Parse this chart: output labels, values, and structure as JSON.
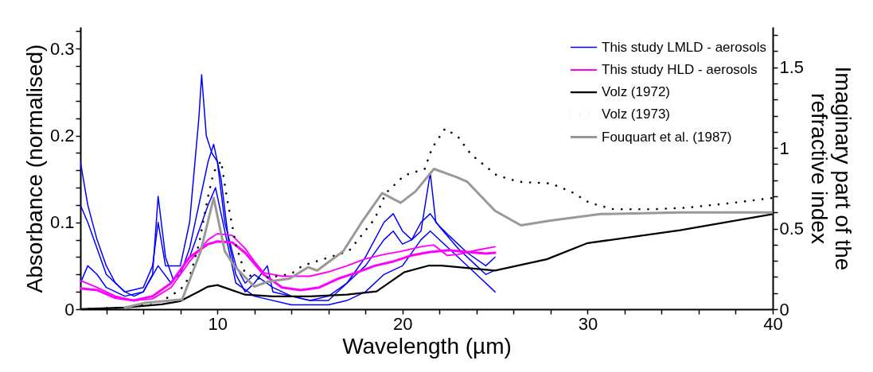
{
  "chart_data": {
    "type": "line",
    "xlabel": "Wavelength (µm)",
    "ylabel": "Absorbance (normalised)",
    "y2label": "Imaginary part of the refractive index",
    "legend": "top right",
    "grid": false,
    "xlim": [
      2.6,
      40
    ],
    "ylim": [
      0,
      0.325
    ],
    "y2lim": [
      0,
      1.75
    ],
    "xticks": [
      {
        "value": 4,
        "label": null
      },
      {
        "value": 6,
        "label": null
      },
      {
        "value": 8,
        "label": null
      },
      10,
      {
        "value": 12,
        "label": null
      },
      {
        "value": 14,
        "label": null
      },
      {
        "value": 16,
        "label": null
      },
      {
        "value": 18,
        "label": null
      },
      20,
      {
        "value": 22,
        "label": null
      },
      {
        "value": 24,
        "label": null
      },
      {
        "value": 26,
        "label": null
      },
      {
        "value": 28,
        "label": null
      },
      30,
      {
        "value": 32,
        "label": null
      },
      {
        "value": 34,
        "label": null
      },
      {
        "value": 36,
        "label": null
      },
      {
        "value": 38,
        "label": null
      },
      40
    ],
    "yticks": [
      0,
      {
        "value": 0.02,
        "label": null
      },
      {
        "value": 0.04,
        "label": null
      },
      {
        "value": 0.06,
        "label": null
      },
      {
        "value": 0.08,
        "label": null
      },
      0.1,
      {
        "value": 0.12,
        "label": null
      },
      {
        "value": 0.14,
        "label": null
      },
      {
        "value": 0.16,
        "label": null
      },
      {
        "value": 0.18,
        "label": null
      },
      0.2,
      {
        "value": 0.22,
        "label": null
      },
      {
        "value": 0.24,
        "label": null
      },
      {
        "value": 0.26,
        "label": null
      },
      {
        "value": 0.28,
        "label": null
      },
      0.3,
      {
        "value": 0.32,
        "label": null
      }
    ],
    "y2ticks": [
      0,
      {
        "value": 0.1,
        "label": null
      },
      {
        "value": 0.2,
        "label": null
      },
      {
        "value": 0.3,
        "label": null
      },
      {
        "value": 0.4,
        "label": null
      },
      0.5,
      {
        "value": 0.6,
        "label": null
      },
      {
        "value": 0.7,
        "label": null
      },
      {
        "value": 0.8,
        "label": null
      },
      {
        "value": 0.9,
        "label": null
      },
      1,
      {
        "value": 1.1,
        "label": null
      },
      {
        "value": 1.2,
        "label": null
      },
      {
        "value": 1.3,
        "label": null
      },
      {
        "value": 1.4,
        "label": null
      },
      1.5,
      {
        "value": 1.6,
        "label": null
      },
      {
        "value": 1.7,
        "label": null
      }
    ],
    "series": [
      {
        "color": "#0000ff",
        "x": [
          2.6,
          3,
          3.5,
          4,
          5,
          6,
          6.5,
          6.8,
          7.2,
          8,
          8.5,
          9,
          9.15,
          9.4,
          9.7,
          10,
          10.4,
          11,
          11.5,
          12,
          13,
          14,
          15,
          16,
          17,
          18,
          19,
          19.5,
          20,
          20.5,
          21,
          21.5,
          21.8,
          22.5,
          23.5,
          24.5,
          25
        ],
        "values": [
          0.12,
          0.1,
          0.07,
          0.04,
          0.02,
          0.025,
          0.05,
          0.1,
          0.05,
          0.05,
          0.1,
          0.22,
          0.27,
          0.2,
          0.18,
          0.17,
          0.1,
          0.05,
          0.03,
          0.04,
          0.025,
          0.015,
          0.01,
          0.015,
          0.03,
          0.06,
          0.1,
          0.11,
          0.09,
          0.08,
          0.09,
          0.157,
          0.1,
          0.085,
          0.065,
          0.05,
          0.06
        ]
      },
      {
        "color": "#0000ff",
        "x": [
          2.6,
          3,
          3.5,
          4,
          5,
          6,
          6.8,
          7.5,
          8.5,
          9.5,
          9.9,
          10.5,
          11,
          12,
          14,
          16,
          17,
          18,
          19,
          20,
          21,
          21.5,
          22.5,
          24,
          25
        ],
        "values": [
          0.03,
          0.05,
          0.04,
          0.025,
          0.015,
          0.02,
          0.05,
          0.03,
          0.06,
          0.12,
          0.14,
          0.08,
          0.03,
          0.015,
          0.005,
          0.005,
          0.01,
          0.02,
          0.04,
          0.05,
          0.08,
          0.09,
          0.07,
          0.04,
          0.02
        ]
      },
      {
        "name": "This study LMLD - aerosols",
        "color": "#0000ff",
        "x": [
          2.6,
          3,
          3.5,
          4,
          4.5,
          5,
          5.5,
          6,
          6.5,
          6.8,
          7.2,
          7.6,
          8,
          8.5,
          9,
          9.5,
          9.8,
          10.2,
          10.6,
          11,
          11.5,
          12,
          12.7,
          13,
          14,
          15,
          16,
          17,
          18,
          19,
          19.5,
          20,
          20.5,
          21,
          21.5,
          22,
          23,
          24,
          24.5,
          25
        ],
        "values": [
          0.17,
          0.12,
          0.08,
          0.05,
          0.03,
          0.02,
          0.015,
          0.02,
          0.04,
          0.13,
          0.06,
          0.035,
          0.04,
          0.07,
          0.12,
          0.17,
          0.19,
          0.15,
          0.08,
          0.04,
          0.02,
          0.03,
          0.05,
          0.02,
          0.015,
          0.01,
          0.01,
          0.03,
          0.05,
          0.08,
          0.09,
          0.075,
          0.08,
          0.1,
          0.11,
          0.095,
          0.07,
          0.05,
          0.04,
          0.045
        ]
      },
      {
        "color": "#ff00ff",
        "x": [
          2.6,
          3.5,
          4.5,
          5.5,
          6.5,
          7.5,
          8.5,
          9.5,
          10,
          10.8,
          11.5,
          12.5,
          13.5,
          14.5,
          15.5,
          16.5,
          17.5,
          18.5,
          19.5,
          20.5,
          21.5,
          22.5,
          23.5,
          24.5,
          25
        ],
        "values": [
          0.024,
          0.022,
          0.013,
          0.01,
          0.015,
          0.03,
          0.06,
          0.075,
          0.078,
          0.077,
          0.065,
          0.04,
          0.025,
          0.022,
          0.025,
          0.035,
          0.042,
          0.05,
          0.055,
          0.062,
          0.066,
          0.068,
          0.066,
          0.064,
          0.065
        ]
      },
      {
        "name": "This study HLD - aerosols",
        "color": "#ff00ff",
        "x": [
          2.6,
          3.5,
          4.5,
          5.5,
          6.5,
          7.5,
          8.5,
          9.5,
          10,
          10.8,
          11.5,
          12,
          12.5,
          13.5,
          15,
          16,
          17,
          18,
          19,
          20,
          21,
          21.7,
          22.4,
          23,
          24,
          25
        ],
        "values": [
          0.033,
          0.025,
          0.015,
          0.01,
          0.012,
          0.025,
          0.055,
          0.08,
          0.087,
          0.085,
          0.07,
          0.055,
          0.042,
          0.038,
          0.038,
          0.043,
          0.05,
          0.058,
          0.063,
          0.067,
          0.072,
          0.074,
          0.062,
          0.063,
          0.068,
          0.072
        ]
      },
      {
        "name": "Volz (1972)",
        "color": "#000000",
        "axis": "y2",
        "x": [
          2.6,
          5,
          7,
          8,
          9,
          9.5,
          10,
          11.5,
          13,
          15,
          17,
          18.6,
          20.1,
          21.4,
          22.1,
          25,
          27.8,
          30,
          35,
          40
        ],
        "values": [
          0,
          0.01,
          0.03,
          0.05,
          0.11,
          0.14,
          0.15,
          0.09,
          0.08,
          0.08,
          0.09,
          0.11,
          0.23,
          0.27,
          0.27,
          0.24,
          0.31,
          0.41,
          0.49,
          0.59
        ]
      },
      {
        "name": "Volz (1973)",
        "color": "#000000",
        "axis": "y2",
        "line_style": "dotted",
        "x": [
          2.6,
          5,
          7,
          8,
          8.5,
          9,
          9.5,
          9.8,
          10.2,
          10.5,
          11,
          11.5,
          12.2,
          13,
          14,
          14.6,
          17.1,
          18.5,
          19.1,
          20.1,
          21.2,
          21.6,
          22.3,
          23,
          23.7,
          25.1,
          26.3,
          28,
          29.1,
          30.1,
          31.4,
          33.6,
          35.4,
          37.9,
          40
        ],
        "values": [
          0,
          0.01,
          0.05,
          0.12,
          0.2,
          0.4,
          0.7,
          0.85,
          0.92,
          0.7,
          0.4,
          0.22,
          0.19,
          0.2,
          0.22,
          0.27,
          0.36,
          0.56,
          0.72,
          0.83,
          0.87,
          1.0,
          1.12,
          1.07,
          0.96,
          0.83,
          0.79,
          0.78,
          0.73,
          0.66,
          0.62,
          0.62,
          0.63,
          0.66,
          0.69
        ]
      },
      {
        "name": "Fouquart et al. (1987)",
        "color": "#999999",
        "axis": "y2",
        "x": [
          5,
          6.1,
          8.1,
          9.1,
          9.8,
          10.4,
          10.9,
          12,
          12.7,
          13.9,
          14.9,
          15.4,
          16.8,
          17.8,
          18.9,
          19.9,
          20.7,
          21.7,
          22.9,
          23.5,
          25,
          26.4,
          28,
          30.7,
          35,
          40
        ],
        "values": [
          0.01,
          0.04,
          0.06,
          0.36,
          0.69,
          0.36,
          0.27,
          0.14,
          0.17,
          0.19,
          0.26,
          0.24,
          0.36,
          0.54,
          0.72,
          0.66,
          0.73,
          0.87,
          0.82,
          0.79,
          0.61,
          0.52,
          0.55,
          0.59,
          0.6,
          0.6
        ]
      }
    ]
  }
}
